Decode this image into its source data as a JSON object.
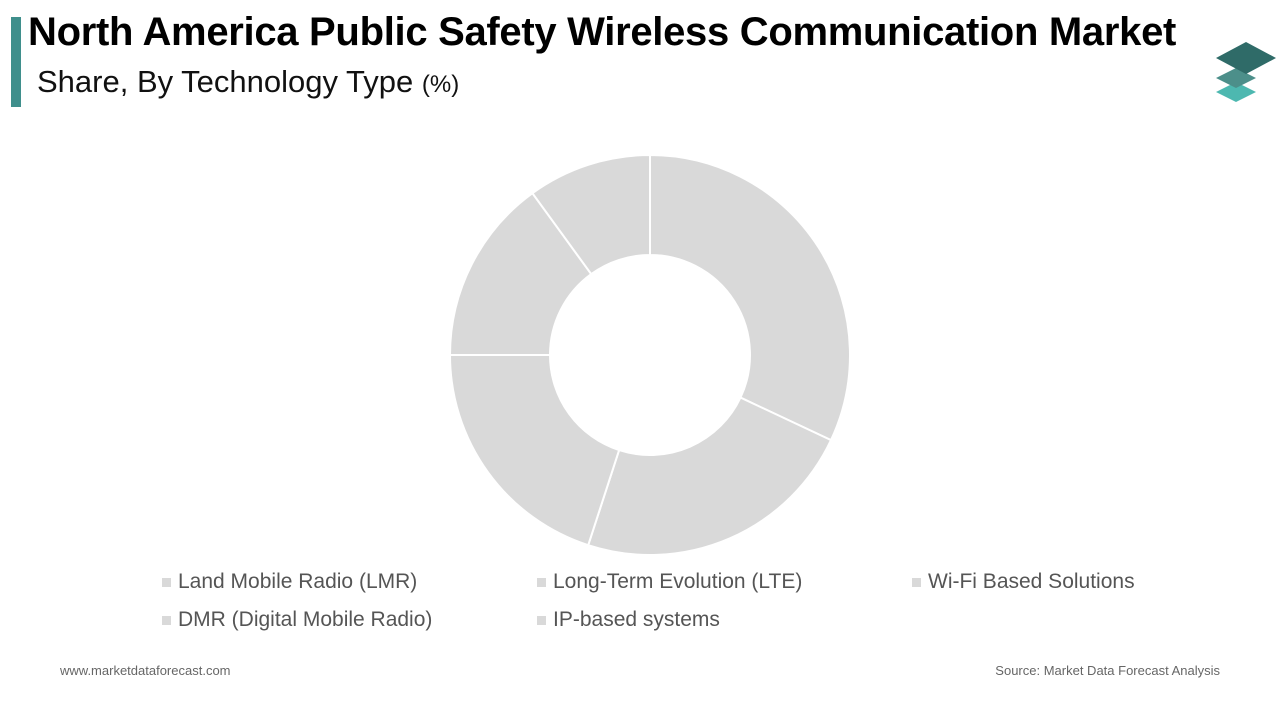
{
  "header": {
    "title": "North America Public Safety Wireless Communication Market",
    "subtitle": "Share, By Technology Type",
    "subtitle_unit": "(%)"
  },
  "brand": {
    "logo_icon": "stacked-layers-logo-icon",
    "colors": {
      "accent": "#3f8f8c",
      "logo_dark": "#2f6b68",
      "logo_mid": "#4c8f8a",
      "logo_light": "#4db8b0"
    }
  },
  "chart_data": {
    "type": "pie",
    "title": "North America Public Safety Wireless Communication Market",
    "subtitle": "Share, By Technology Type (%)",
    "categories": [
      "Land Mobile Radio (LMR)",
      "Long-Term Evolution (LTE)",
      "Wi-Fi Based Solutions",
      "DMR (Digital Mobile Radio)",
      "IP-based systems"
    ],
    "values": [
      32,
      23,
      20,
      15,
      10
    ],
    "colors": [
      "#d9d9d9",
      "#d9d9d9",
      "#d9d9d9",
      "#d9d9d9",
      "#d9d9d9"
    ],
    "donut": true,
    "legend_position": "bottom"
  },
  "footer": {
    "website": "www.marketdataforecast.com",
    "source": "Source: Market Data Forecast Analysis"
  }
}
